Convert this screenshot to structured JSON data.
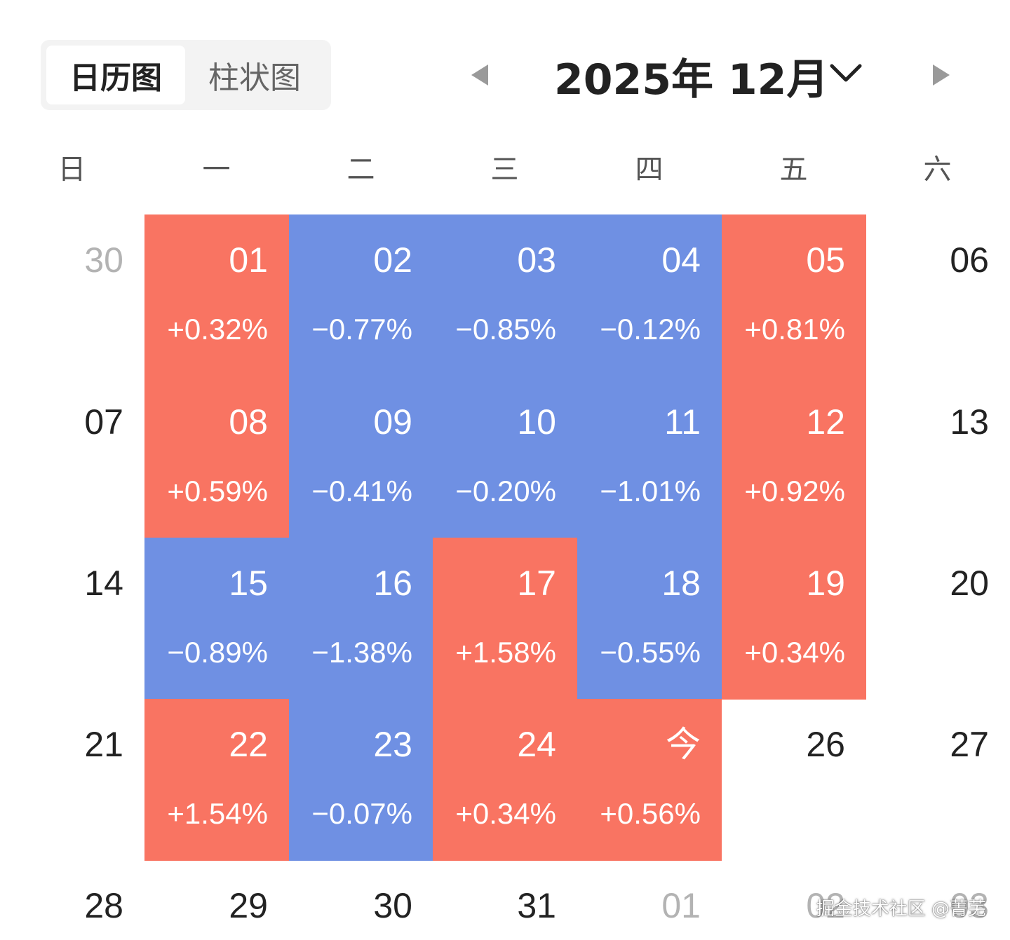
{
  "view_tabs": [
    {
      "label": "日历图",
      "active": true
    },
    {
      "label": "柱状图",
      "active": false
    }
  ],
  "month_nav": {
    "title": "2025年 12月",
    "prev_icon": "triangle-left-icon",
    "next_icon": "triangle-right-icon",
    "dropdown_icon": "chevron-down-icon"
  },
  "weekdays": [
    "日",
    "一",
    "二",
    "三",
    "四",
    "五",
    "六"
  ],
  "colors": {
    "up": "#f97462",
    "down": "#6f90e3",
    "muted_text": "#b3b3b3",
    "text": "#222222"
  },
  "weeks": [
    [
      {
        "label": "30",
        "status": "muted",
        "change": ""
      },
      {
        "label": "01",
        "status": "up",
        "change": "+0.32%"
      },
      {
        "label": "02",
        "status": "down",
        "change": "−0.77%"
      },
      {
        "label": "03",
        "status": "down",
        "change": "−0.85%"
      },
      {
        "label": "04",
        "status": "down",
        "change": "−0.12%"
      },
      {
        "label": "05",
        "status": "up",
        "change": "+0.81%"
      },
      {
        "label": "06",
        "status": "plain",
        "change": ""
      }
    ],
    [
      {
        "label": "07",
        "status": "plain",
        "change": ""
      },
      {
        "label": "08",
        "status": "up",
        "change": "+0.59%"
      },
      {
        "label": "09",
        "status": "down",
        "change": "−0.41%"
      },
      {
        "label": "10",
        "status": "down",
        "change": "−0.20%"
      },
      {
        "label": "11",
        "status": "down",
        "change": "−1.01%"
      },
      {
        "label": "12",
        "status": "up",
        "change": "+0.92%"
      },
      {
        "label": "13",
        "status": "plain",
        "change": ""
      }
    ],
    [
      {
        "label": "14",
        "status": "plain",
        "change": ""
      },
      {
        "label": "15",
        "status": "down",
        "change": "−0.89%"
      },
      {
        "label": "16",
        "status": "down",
        "change": "−1.38%"
      },
      {
        "label": "17",
        "status": "up",
        "change": "+1.58%"
      },
      {
        "label": "18",
        "status": "down",
        "change": "−0.55%"
      },
      {
        "label": "19",
        "status": "up",
        "change": "+0.34%"
      },
      {
        "label": "20",
        "status": "plain",
        "change": ""
      }
    ],
    [
      {
        "label": "21",
        "status": "plain",
        "change": ""
      },
      {
        "label": "22",
        "status": "up",
        "change": "+1.54%"
      },
      {
        "label": "23",
        "status": "down",
        "change": "−0.07%"
      },
      {
        "label": "24",
        "status": "up",
        "change": "+0.34%"
      },
      {
        "label": "今",
        "status": "up",
        "change": "+0.56%"
      },
      {
        "label": "26",
        "status": "plain",
        "change": ""
      },
      {
        "label": "27",
        "status": "plain",
        "change": ""
      }
    ],
    [
      {
        "label": "28",
        "status": "plain",
        "change": ""
      },
      {
        "label": "29",
        "status": "plain",
        "change": ""
      },
      {
        "label": "30",
        "status": "plain",
        "change": ""
      },
      {
        "label": "31",
        "status": "plain",
        "change": ""
      },
      {
        "label": "01",
        "status": "muted",
        "change": ""
      },
      {
        "label": "02",
        "status": "muted",
        "change": ""
      },
      {
        "label": "03",
        "status": "muted",
        "change": ""
      }
    ]
  ],
  "watermark": "掘金技术社区 @菁芜"
}
